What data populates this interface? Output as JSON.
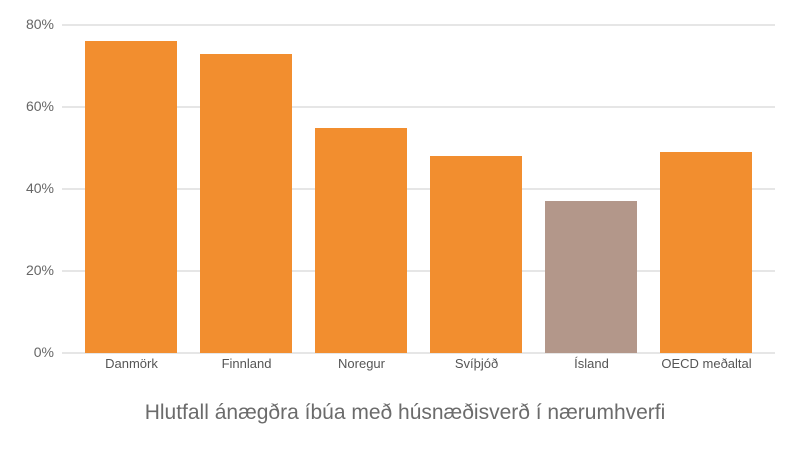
{
  "chart_data": {
    "type": "bar",
    "title": "Hlutfall ánægðra íbúa með húsnæðisverð í nærumhverfi",
    "xlabel": "",
    "ylabel": "",
    "ylim": [
      0,
      80
    ],
    "yticks": [
      "0%",
      "20%",
      "40%",
      "60%",
      "80%"
    ],
    "grid": true,
    "categories": [
      "Danmörk",
      "Finnland",
      "Noregur",
      "Svíþjóð",
      "Ísland",
      "OECD meðaltal"
    ],
    "values": [
      76,
      73,
      55,
      48,
      37,
      49
    ],
    "colors": [
      "#f28e2f",
      "#f28e2f",
      "#f28e2f",
      "#f28e2f",
      "#b3978a",
      "#f28e2f"
    ]
  }
}
